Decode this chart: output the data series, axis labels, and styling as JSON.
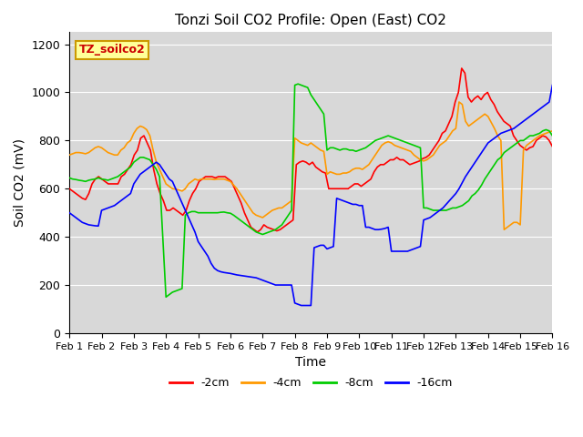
{
  "title": "Tonzi Soil CO2 Profile: Open (East) CO2",
  "xlabel": "Time",
  "ylabel": "Soil CO2 (mV)",
  "xlim": [
    0,
    15
  ],
  "ylim": [
    0,
    1250
  ],
  "yticks": [
    0,
    200,
    400,
    600,
    800,
    1000,
    1200
  ],
  "xtick_labels": [
    "Feb 1",
    "Feb 2",
    "Feb 3",
    "Feb 4",
    "Feb 5",
    "Feb 6",
    "Feb 7",
    "Feb 8",
    "Feb 9",
    "Feb 10",
    "Feb 11",
    "Feb 12",
    "Feb 13",
    "Feb 14",
    "Feb 15",
    "Feb 16"
  ],
  "background_color": "#d8d8d8",
  "legend_label": "TZ_soilco2",
  "series": {
    "m2cm": {
      "color": "#ff0000",
      "label": "-2cm",
      "y": [
        600,
        590,
        580,
        570,
        560,
        555,
        580,
        620,
        640,
        650,
        640,
        630,
        620,
        620,
        620,
        620,
        650,
        660,
        680,
        700,
        740,
        760,
        810,
        820,
        790,
        760,
        680,
        620,
        580,
        550,
        510,
        510,
        520,
        510,
        500,
        490,
        510,
        550,
        580,
        600,
        630,
        640,
        650,
        650,
        650,
        645,
        650,
        650,
        650,
        640,
        630,
        600,
        570,
        540,
        500,
        470,
        440,
        430,
        420,
        430,
        450,
        440,
        435,
        430,
        425,
        430,
        440,
        450,
        460,
        470,
        700,
        710,
        715,
        710,
        700,
        710,
        690,
        680,
        670,
        665,
        600,
        600,
        600,
        600,
        600,
        600,
        600,
        610,
        620,
        620,
        610,
        620,
        630,
        640,
        670,
        690,
        700,
        700,
        710,
        720,
        720,
        730,
        720,
        720,
        710,
        700,
        705,
        710,
        715,
        725,
        730,
        740,
        760,
        780,
        800,
        830,
        840,
        870,
        900,
        960,
        1000,
        1100,
        1080,
        980,
        960,
        975,
        985,
        970,
        990,
        1000,
        970,
        950,
        920,
        900,
        880,
        870,
        860,
        820,
        800,
        780,
        770,
        760,
        770,
        775,
        800,
        810,
        820,
        815,
        800,
        775
      ]
    },
    "m4cm": {
      "color": "#ff9900",
      "label": "-4cm",
      "y": [
        740,
        745,
        750,
        750,
        748,
        745,
        750,
        760,
        770,
        775,
        770,
        760,
        750,
        745,
        740,
        740,
        760,
        770,
        790,
        800,
        830,
        850,
        860,
        855,
        845,
        820,
        760,
        710,
        680,
        650,
        620,
        610,
        600,
        598,
        595,
        590,
        600,
        620,
        630,
        640,
        635,
        640,
        640,
        640,
        640,
        638,
        640,
        640,
        640,
        635,
        630,
        615,
        600,
        580,
        560,
        540,
        520,
        500,
        490,
        485,
        480,
        490,
        500,
        510,
        515,
        520,
        520,
        530,
        540,
        550,
        810,
        800,
        790,
        785,
        780,
        790,
        780,
        770,
        760,
        755,
        660,
        670,
        665,
        660,
        660,
        665,
        665,
        670,
        680,
        685,
        685,
        680,
        690,
        700,
        720,
        740,
        760,
        780,
        790,
        795,
        790,
        780,
        775,
        770,
        765,
        760,
        755,
        740,
        730,
        720,
        715,
        720,
        730,
        740,
        760,
        780,
        790,
        800,
        820,
        840,
        850,
        960,
        950,
        880,
        860,
        870,
        880,
        890,
        900,
        910,
        900,
        875,
        850,
        820,
        800,
        430,
        440,
        450,
        460,
        460,
        450,
        760,
        780,
        790,
        800,
        810,
        820,
        825,
        830,
        835,
        840
      ]
    },
    "m8cm": {
      "color": "#00cc00",
      "label": "-8cm",
      "y": [
        645,
        640,
        638,
        635,
        633,
        630,
        635,
        638,
        640,
        645,
        640,
        638,
        635,
        640,
        645,
        650,
        660,
        670,
        680,
        690,
        710,
        720,
        730,
        730,
        725,
        720,
        700,
        680,
        650,
        400,
        150,
        160,
        170,
        175,
        180,
        185,
        490,
        500,
        505,
        505,
        500,
        500,
        500,
        500,
        500,
        500,
        500,
        502,
        503,
        500,
        498,
        490,
        480,
        470,
        460,
        450,
        440,
        430,
        420,
        415,
        410,
        415,
        420,
        425,
        430,
        440,
        450,
        470,
        490,
        510,
        1030,
        1035,
        1030,
        1025,
        1020,
        990,
        970,
        950,
        930,
        910,
        760,
        770,
        770,
        765,
        760,
        765,
        765,
        760,
        760,
        755,
        760,
        765,
        770,
        780,
        790,
        800,
        805,
        810,
        815,
        820,
        815,
        810,
        805,
        800,
        795,
        790,
        785,
        780,
        775,
        770,
        520,
        520,
        515,
        510,
        510,
        510,
        510,
        510,
        515,
        520,
        520,
        525,
        530,
        540,
        550,
        570,
        580,
        595,
        615,
        640,
        660,
        680,
        700,
        720,
        730,
        750,
        760,
        770,
        780,
        790,
        800,
        800,
        810,
        820,
        820,
        825,
        830,
        840,
        845,
        840,
        820
      ]
    },
    "m16cm": {
      "color": "#0000ff",
      "label": "-16cm",
      "y": [
        500,
        490,
        480,
        470,
        460,
        455,
        450,
        448,
        446,
        445,
        510,
        515,
        520,
        525,
        530,
        540,
        550,
        560,
        570,
        580,
        620,
        640,
        660,
        670,
        680,
        690,
        700,
        710,
        700,
        680,
        660,
        640,
        630,
        600,
        570,
        540,
        510,
        480,
        450,
        420,
        380,
        360,
        340,
        320,
        290,
        270,
        260,
        255,
        252,
        250,
        248,
        245,
        242,
        240,
        238,
        236,
        234,
        232,
        230,
        225,
        220,
        215,
        210,
        205,
        200,
        200,
        200,
        200,
        200,
        200,
        125,
        120,
        115,
        115,
        115,
        115,
        355,
        360,
        365,
        365,
        350,
        355,
        360,
        560,
        555,
        550,
        545,
        540,
        535,
        535,
        530,
        530,
        440,
        440,
        435,
        430,
        430,
        432,
        435,
        440,
        340,
        340,
        340,
        340,
        340,
        340,
        345,
        350,
        355,
        360,
        470,
        475,
        480,
        490,
        500,
        510,
        520,
        535,
        550,
        565,
        580,
        600,
        625,
        650,
        670,
        690,
        710,
        730,
        750,
        770,
        790,
        800,
        810,
        820,
        830,
        835,
        840,
        845,
        850,
        860,
        870,
        880,
        890,
        900,
        910,
        920,
        930,
        940,
        950,
        960,
        1030
      ]
    }
  }
}
